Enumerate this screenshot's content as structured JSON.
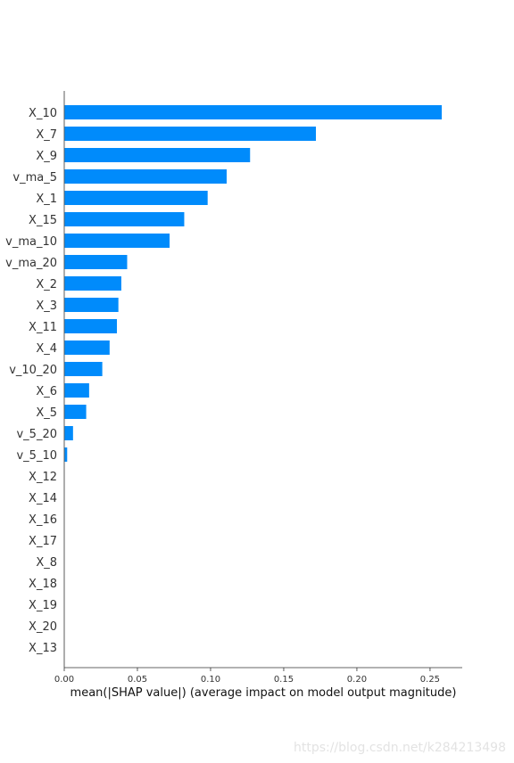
{
  "chart_data": {
    "type": "bar",
    "orientation": "horizontal",
    "categories": [
      "X_10",
      "X_7",
      "X_9",
      "v_ma_5",
      "X_1",
      "X_15",
      "v_ma_10",
      "v_ma_20",
      "X_2",
      "X_3",
      "X_11",
      "X_4",
      "v_10_20",
      "X_6",
      "X_5",
      "v_5_20",
      "v_5_10",
      "X_12",
      "X_14",
      "X_16",
      "X_17",
      "X_8",
      "X_18",
      "X_19",
      "X_20",
      "X_13"
    ],
    "values": [
      0.258,
      0.172,
      0.127,
      0.111,
      0.098,
      0.082,
      0.072,
      0.043,
      0.039,
      0.037,
      0.036,
      0.031,
      0.026,
      0.017,
      0.015,
      0.006,
      0.002,
      0,
      0,
      0,
      0,
      0,
      0,
      0,
      0,
      0
    ],
    "xlabel": "mean(|SHAP value|) (average impact on model output magnitude)",
    "xlim": [
      0,
      0.272
    ],
    "xticks": [
      0.0,
      0.05,
      0.1,
      0.15,
      0.2,
      0.25
    ],
    "xtick_labels": [
      "0.00",
      "0.05",
      "0.10",
      "0.15",
      "0.20",
      "0.25"
    ],
    "bar_color": "#008bfb",
    "grid": false,
    "legend": "none"
  },
  "watermark": "https://blog.csdn.net/k284213498"
}
